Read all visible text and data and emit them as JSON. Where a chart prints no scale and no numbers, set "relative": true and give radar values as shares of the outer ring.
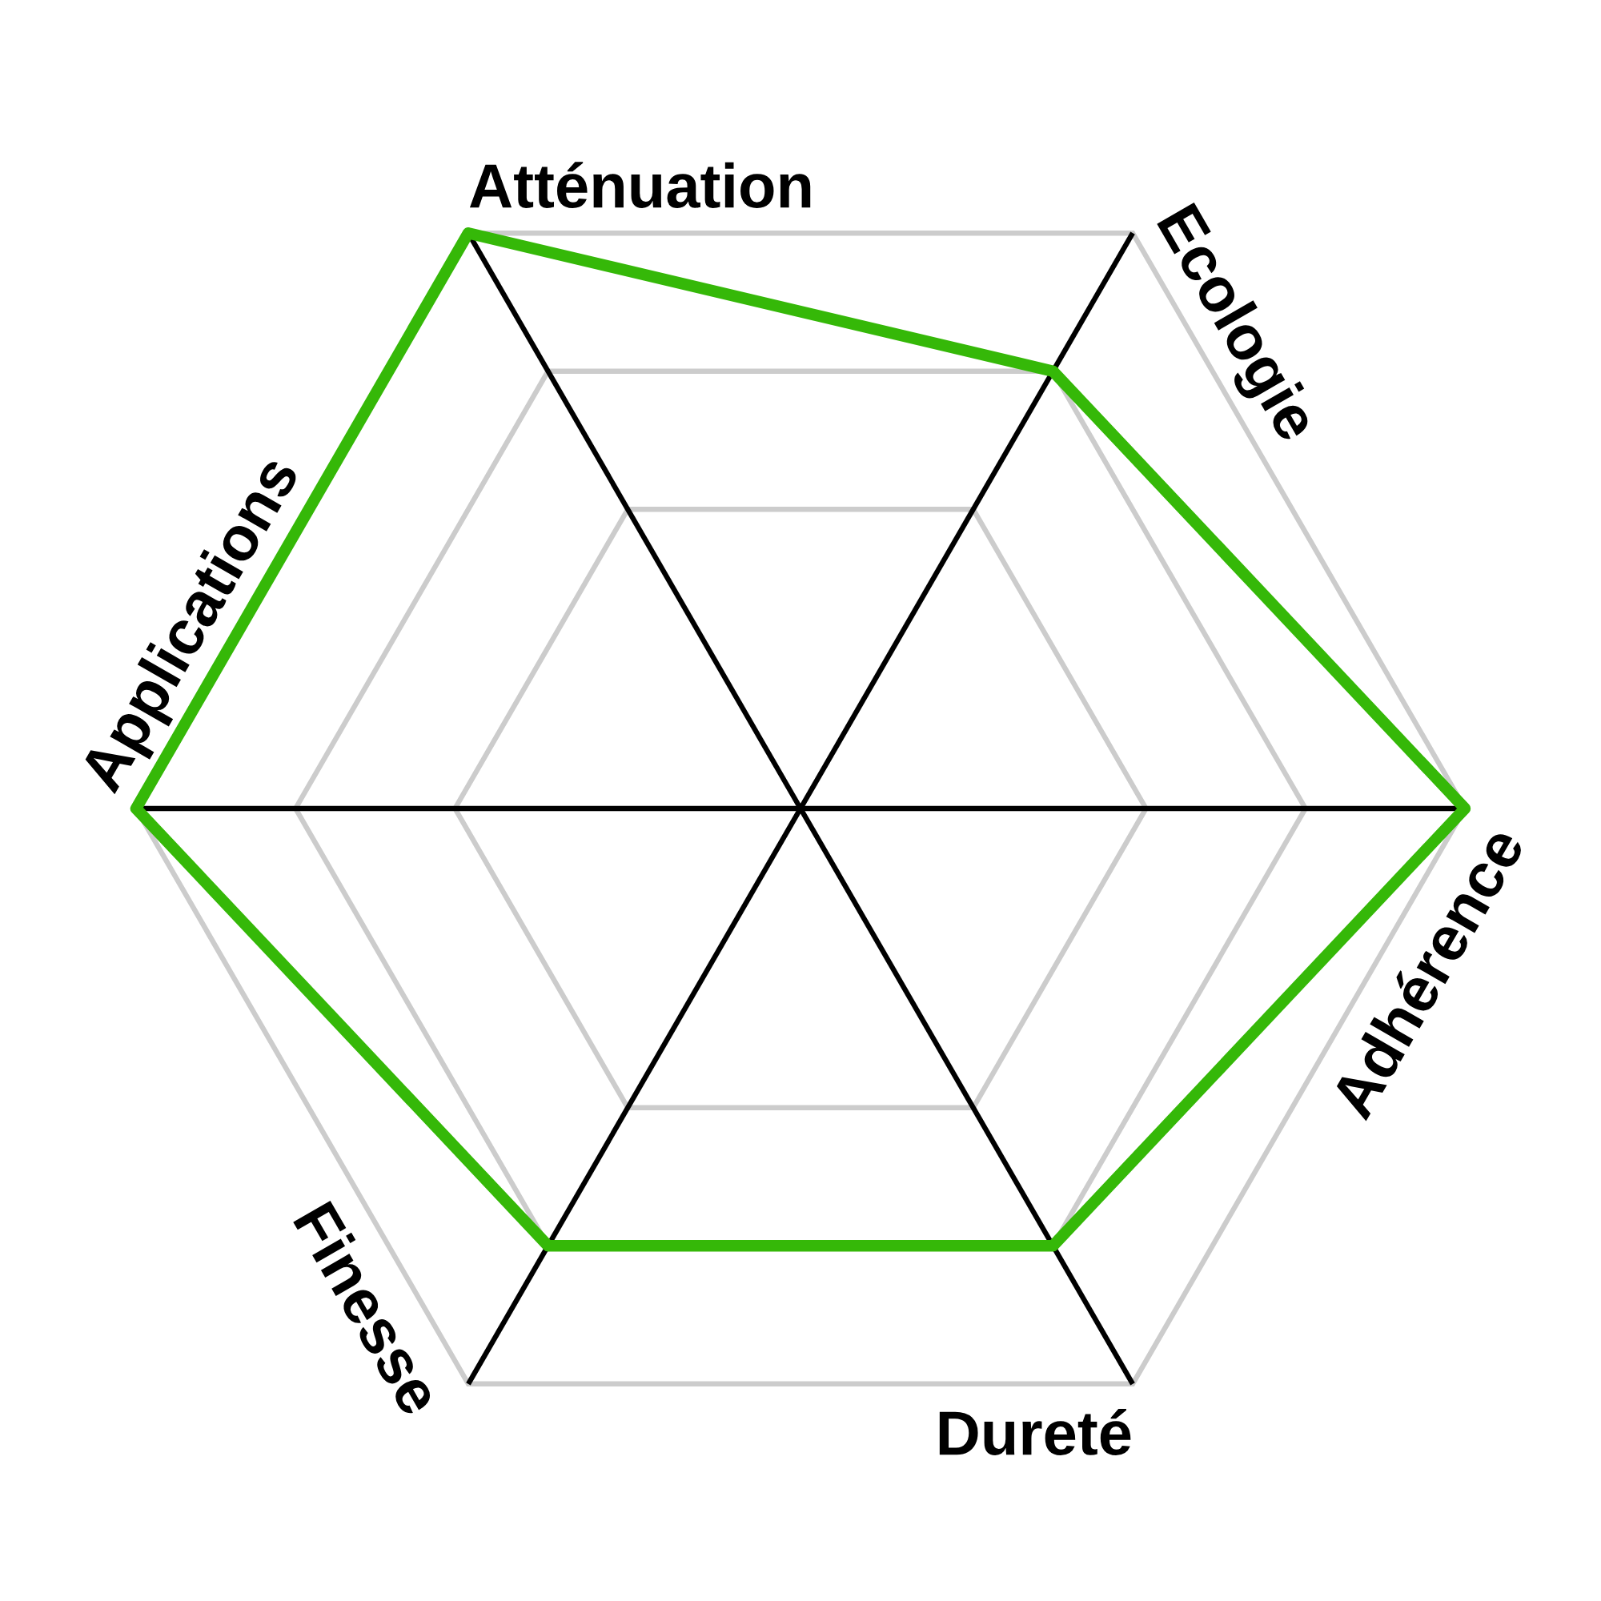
{
  "chart_data": {
    "type": "radar",
    "categories": [
      "Atténuation",
      "Ecologie",
      "Adhérence",
      "Dureté",
      "Finesse",
      "Applications"
    ],
    "relative": true,
    "series": [
      {
        "color": "#35b808",
        "values": [
          1,
          0.76,
          1,
          0.76,
          0.76,
          1
        ]
      }
    ],
    "grid": true
  }
}
